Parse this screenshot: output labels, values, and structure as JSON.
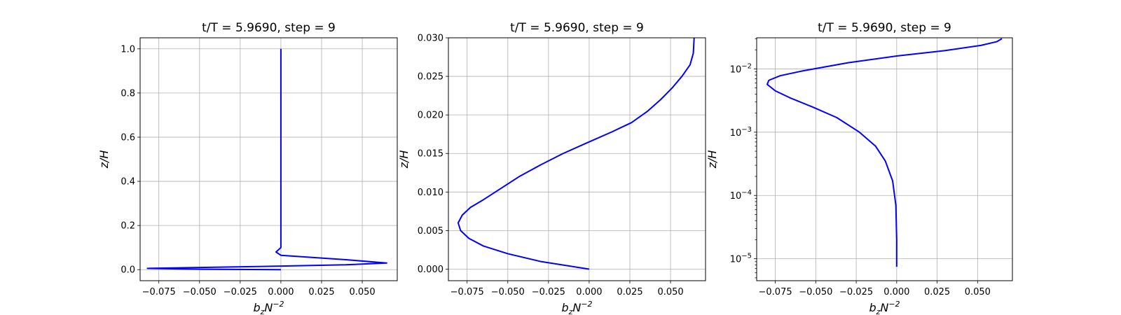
{
  "chart_data": [
    {
      "type": "line",
      "title": "t/T = 5.9690, step = 9",
      "xlabel": "b_zN^{-2}",
      "ylabel": "z/H",
      "xlim": [
        -0.0865,
        0.0715
      ],
      "ylim": [
        -0.05,
        1.05
      ],
      "yscale": "linear",
      "grid": true,
      "xticks": [
        {
          "value": -0.075,
          "label": "−0.075"
        },
        {
          "value": -0.05,
          "label": "−0.050"
        },
        {
          "value": -0.025,
          "label": "−0.025"
        },
        {
          "value": 0.0,
          "label": "0.000"
        },
        {
          "value": 0.025,
          "label": "0.025"
        },
        {
          "value": 0.05,
          "label": "0.050"
        }
      ],
      "yticks": [
        {
          "value": 0.0,
          "label": "0.0"
        },
        {
          "value": 0.2,
          "label": "0.2"
        },
        {
          "value": 0.4,
          "label": "0.4"
        },
        {
          "value": 0.6,
          "label": "0.6"
        },
        {
          "value": 0.8,
          "label": "0.8"
        },
        {
          "value": 1.0,
          "label": "1.0"
        }
      ],
      "series": [
        {
          "color": "#0000ff",
          "points": [
            [
              0.0,
              0.0
            ],
            [
              -0.05,
              0.002
            ],
            [
              -0.082,
              0.006
            ],
            [
              -0.05,
              0.01
            ],
            [
              0.0,
              0.016
            ],
            [
              0.04,
              0.022
            ],
            [
              0.065,
              0.03
            ],
            [
              0.04,
              0.045
            ],
            [
              0.0,
              0.065
            ],
            [
              -0.003,
              0.08
            ],
            [
              0.0,
              0.1
            ],
            [
              0.0,
              0.13
            ],
            [
              0.0,
              0.2
            ],
            [
              0.0,
              0.4
            ],
            [
              0.0,
              0.6
            ],
            [
              0.0,
              0.8
            ],
            [
              0.0,
              1.0
            ]
          ]
        }
      ]
    },
    {
      "type": "line",
      "title": "t/T = 5.9690, step = 9",
      "xlabel": "b_zN^{-2}",
      "ylabel": "z/H",
      "xlim": [
        -0.0865,
        0.0715
      ],
      "ylim": [
        -0.0015,
        0.03
      ],
      "yscale": "linear",
      "grid": true,
      "xticks": [
        {
          "value": -0.075,
          "label": "−0.075"
        },
        {
          "value": -0.05,
          "label": "−0.050"
        },
        {
          "value": -0.025,
          "label": "−0.025"
        },
        {
          "value": 0.0,
          "label": "0.000"
        },
        {
          "value": 0.025,
          "label": "0.025"
        },
        {
          "value": 0.05,
          "label": "0.050"
        }
      ],
      "yticks": [
        {
          "value": 0.0,
          "label": "0.000"
        },
        {
          "value": 0.005,
          "label": "0.005"
        },
        {
          "value": 0.01,
          "label": "0.010"
        },
        {
          "value": 0.015,
          "label": "0.015"
        },
        {
          "value": 0.02,
          "label": "0.020"
        },
        {
          "value": 0.025,
          "label": "0.025"
        },
        {
          "value": 0.03,
          "label": "0.030"
        }
      ],
      "series": [
        {
          "color": "#0000ff",
          "points": [
            [
              0.0,
              0.0
            ],
            [
              -0.03,
              0.001
            ],
            [
              -0.05,
              0.002
            ],
            [
              -0.065,
              0.003
            ],
            [
              -0.074,
              0.004
            ],
            [
              -0.079,
              0.005
            ],
            [
              -0.0805,
              0.006
            ],
            [
              -0.078,
              0.007
            ],
            [
              -0.073,
              0.008
            ],
            [
              -0.065,
              0.009
            ],
            [
              -0.054,
              0.0105
            ],
            [
              -0.043,
              0.012
            ],
            [
              -0.03,
              0.0135
            ],
            [
              -0.016,
              0.015
            ],
            [
              0.0,
              0.0165
            ],
            [
              0.014,
              0.0178
            ],
            [
              0.026,
              0.019
            ],
            [
              0.036,
              0.0205
            ],
            [
              0.044,
              0.022
            ],
            [
              0.051,
              0.0235
            ],
            [
              0.057,
              0.025
            ],
            [
              0.062,
              0.0265
            ],
            [
              0.064,
              0.028
            ],
            [
              0.0645,
              0.03
            ]
          ]
        }
      ]
    },
    {
      "type": "line",
      "title": "t/T = 5.9690, step = 9",
      "xlabel": "b_zN^{-2}",
      "ylabel": "z/H",
      "xlim": [
        -0.0865,
        0.0715
      ],
      "ylim": [
        4.5e-06,
        0.031
      ],
      "yscale": "log",
      "grid": true,
      "xticks": [
        {
          "value": -0.075,
          "label": "−0.075"
        },
        {
          "value": -0.05,
          "label": "−0.050"
        },
        {
          "value": -0.025,
          "label": "−0.025"
        },
        {
          "value": 0.0,
          "label": "0.000"
        },
        {
          "value": 0.025,
          "label": "0.025"
        },
        {
          "value": 0.05,
          "label": "0.050"
        }
      ],
      "yticks": [
        {
          "value": 1e-05,
          "base": "10",
          "exp": "−5"
        },
        {
          "value": 0.0001,
          "base": "10",
          "exp": "−4"
        },
        {
          "value": 0.001,
          "base": "10",
          "exp": "−3"
        },
        {
          "value": 0.01,
          "base": "10",
          "exp": "−2"
        }
      ],
      "series": [
        {
          "color": "#0000ff",
          "points": [
            [
              0.0,
              7.5e-06
            ],
            [
              0.0,
              2e-05
            ],
            [
              -0.0005,
              7e-05
            ],
            [
              -0.0025,
              0.00017
            ],
            [
              -0.007,
              0.00035
            ],
            [
              -0.013,
              0.0006
            ],
            [
              -0.023,
              0.001
            ],
            [
              -0.037,
              0.0017
            ],
            [
              -0.052,
              0.0025
            ],
            [
              -0.066,
              0.0035
            ],
            [
              -0.075,
              0.0045
            ],
            [
              -0.08,
              0.0057
            ],
            [
              -0.079,
              0.0066
            ],
            [
              -0.072,
              0.0078
            ],
            [
              -0.058,
              0.0093
            ],
            [
              -0.03,
              0.0125
            ],
            [
              0.0,
              0.016
            ],
            [
              0.03,
              0.0195
            ],
            [
              0.052,
              0.0235
            ],
            [
              0.062,
              0.027
            ],
            [
              0.065,
              0.03
            ]
          ]
        }
      ]
    }
  ]
}
